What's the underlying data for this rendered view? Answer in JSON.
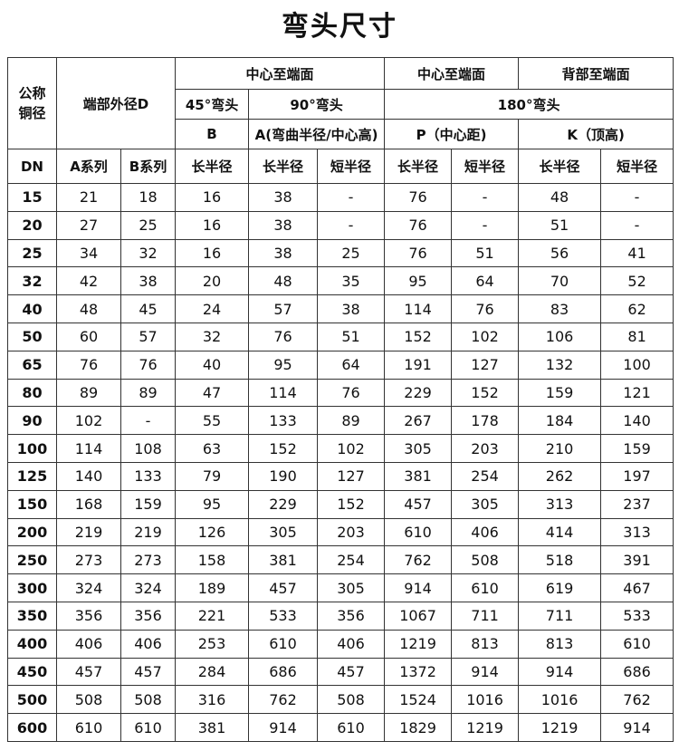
{
  "title": "弯头尺寸",
  "header": {
    "dn_group": "公称铜径",
    "od_group": "端部外径D",
    "row1": [
      "中心至端面",
      "中心至端面",
      "背部至端面"
    ],
    "row2": [
      "45°弯头",
      "90°弯头",
      "180°弯头"
    ],
    "row3": [
      "B",
      "A(弯曲半径/中心高)",
      "P（中心距)",
      "K（顶高)"
    ],
    "row4": [
      "DN",
      "A系列",
      "B系列",
      "长半径",
      "长半径",
      "短半径",
      "长半径",
      "短半径",
      "长半径",
      "短半径"
    ]
  },
  "table": {
    "rows": [
      [
        15,
        21,
        18,
        16,
        38,
        "-",
        76,
        "-",
        48,
        "-"
      ],
      [
        20,
        27,
        25,
        16,
        38,
        "-",
        76,
        "-",
        51,
        "-"
      ],
      [
        25,
        34,
        32,
        16,
        38,
        25,
        76,
        51,
        56,
        41
      ],
      [
        32,
        42,
        38,
        20,
        48,
        35,
        95,
        64,
        70,
        52
      ],
      [
        40,
        48,
        45,
        24,
        57,
        38,
        114,
        76,
        83,
        62
      ],
      [
        50,
        60,
        57,
        32,
        76,
        51,
        152,
        102,
        106,
        81
      ],
      [
        65,
        76,
        76,
        40,
        95,
        64,
        191,
        127,
        132,
        100
      ],
      [
        80,
        89,
        89,
        47,
        114,
        76,
        229,
        152,
        159,
        121
      ],
      [
        90,
        102,
        "-",
        55,
        133,
        89,
        267,
        178,
        184,
        140
      ],
      [
        100,
        114,
        108,
        63,
        152,
        102,
        305,
        203,
        210,
        159
      ],
      [
        125,
        140,
        133,
        79,
        190,
        127,
        381,
        254,
        262,
        197
      ],
      [
        150,
        168,
        159,
        95,
        229,
        152,
        457,
        305,
        313,
        237
      ],
      [
        200,
        219,
        219,
        126,
        305,
        203,
        610,
        406,
        414,
        313
      ],
      [
        250,
        273,
        273,
        158,
        381,
        254,
        762,
        508,
        518,
        391
      ],
      [
        300,
        324,
        324,
        189,
        457,
        305,
        914,
        610,
        619,
        467
      ],
      [
        350,
        356,
        356,
        221,
        533,
        356,
        1067,
        711,
        711,
        533
      ],
      [
        400,
        406,
        406,
        253,
        610,
        406,
        1219,
        813,
        813,
        610
      ],
      [
        450,
        457,
        457,
        284,
        686,
        457,
        1372,
        914,
        914,
        686
      ],
      [
        500,
        508,
        508,
        316,
        762,
        508,
        1524,
        1016,
        1016,
        762
      ],
      [
        600,
        610,
        610,
        381,
        914,
        610,
        1829,
        1219,
        1219,
        914
      ]
    ]
  }
}
